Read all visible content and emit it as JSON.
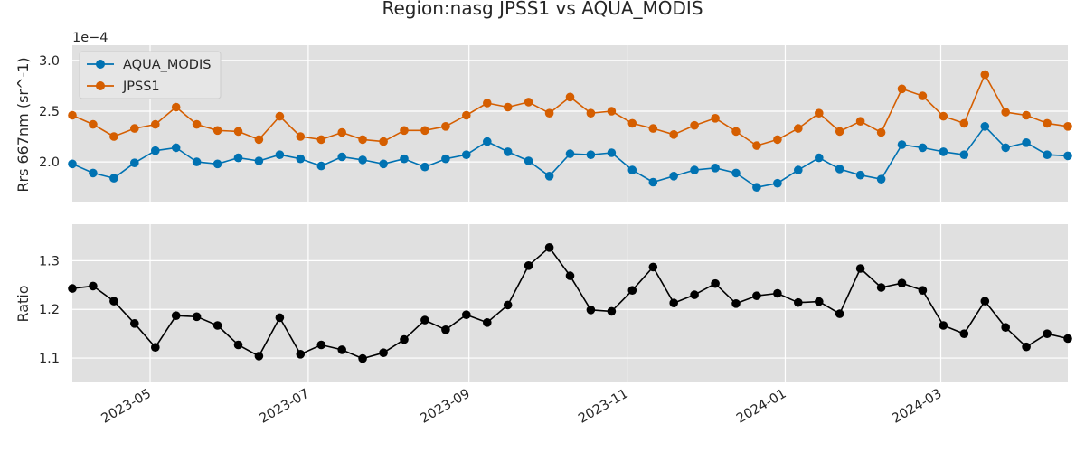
{
  "chart_data": {
    "type": "line",
    "title": "Region:nasg JPSS1 vs AQUA_MODIS",
    "x": [
      "2023-04-01",
      "2023-04-09",
      "2023-04-17",
      "2023-04-25",
      "2023-05-03",
      "2023-05-11",
      "2023-05-19",
      "2023-05-27",
      "2023-06-04",
      "2023-06-12",
      "2023-06-20",
      "2023-06-28",
      "2023-07-06",
      "2023-07-14",
      "2023-07-22",
      "2023-07-30",
      "2023-08-07",
      "2023-08-15",
      "2023-08-23",
      "2023-08-31",
      "2023-09-08",
      "2023-09-16",
      "2023-09-24",
      "2023-10-02",
      "2023-10-10",
      "2023-10-18",
      "2023-10-26",
      "2023-11-03",
      "2023-11-11",
      "2023-11-19",
      "2023-11-27",
      "2023-12-05",
      "2023-12-13",
      "2023-12-21",
      "2023-12-29",
      "2024-01-06",
      "2024-01-14",
      "2024-01-22",
      "2024-01-30",
      "2024-02-07",
      "2024-02-15",
      "2024-02-23",
      "2024-03-02",
      "2024-03-10",
      "2024-03-18",
      "2024-03-26",
      "2024-04-03",
      "2024-04-11",
      "2024-04-19"
    ],
    "xlim": [
      "2023-04-01",
      "2024-04-19"
    ],
    "xticks": [
      "2023-05",
      "2023-07",
      "2023-09",
      "2023-11",
      "2024-01",
      "2024-03"
    ],
    "panels": [
      {
        "ylabel": "Rrs 667nm (sr^-1)",
        "offset_label": "1e−4",
        "ylim": [
          1.6,
          3.15
        ],
        "yticks": [
          "2.0",
          "2.5",
          "3.0"
        ],
        "ytick_values": [
          2.0,
          2.5,
          3.0
        ],
        "grid": true,
        "legend": "top-left",
        "series": [
          {
            "name": "AQUA_MODIS",
            "color": "#0072b2",
            "values": [
              1.98,
              1.89,
              1.84,
              1.99,
              2.11,
              2.14,
              2.0,
              1.98,
              2.04,
              2.01,
              2.07,
              2.03,
              1.96,
              2.05,
              2.02,
              1.98,
              2.03,
              1.95,
              2.03,
              2.07,
              2.2,
              2.1,
              2.01,
              1.86,
              2.08,
              2.07,
              2.09,
              1.92,
              1.8,
              1.86,
              1.92,
              1.94,
              1.89,
              1.75,
              1.79,
              1.92,
              2.04,
              1.93,
              1.87,
              1.83,
              2.17,
              2.14,
              2.1,
              2.07,
              2.35,
              2.14,
              2.19,
              2.07,
              2.06
            ]
          },
          {
            "name": "JPSS1",
            "color": "#d55e00",
            "values": [
              2.46,
              2.37,
              2.25,
              2.33,
              2.37,
              2.54,
              2.37,
              2.31,
              2.3,
              2.22,
              2.45,
              2.25,
              2.22,
              2.29,
              2.22,
              2.2,
              2.31,
              2.31,
              2.35,
              2.46,
              2.58,
              2.54,
              2.59,
              2.48,
              2.64,
              2.48,
              2.5,
              2.38,
              2.33,
              2.27,
              2.36,
              2.43,
              2.3,
              2.16,
              2.22,
              2.33,
              2.48,
              2.3,
              2.4,
              2.29,
              2.72,
              2.65,
              2.45,
              2.38,
              2.86,
              2.49,
              2.46,
              2.38,
              2.35
            ]
          }
        ]
      },
      {
        "ylabel": "Ratio",
        "ylim": [
          1.05,
          1.375
        ],
        "yticks": [
          "1.1",
          "1.2",
          "1.3"
        ],
        "ytick_values": [
          1.1,
          1.2,
          1.3
        ],
        "grid": true,
        "series": [
          {
            "color": "#000000",
            "values": [
              1.243,
              1.248,
              1.217,
              1.171,
              1.122,
              1.187,
              1.185,
              1.167,
              1.127,
              1.104,
              1.183,
              1.108,
              1.127,
              1.117,
              1.099,
              1.111,
              1.138,
              1.178,
              1.158,
              1.189,
              1.173,
              1.209,
              1.29,
              1.327,
              1.269,
              1.199,
              1.196,
              1.239,
              1.287,
              1.213,
              1.23,
              1.253,
              1.212,
              1.228,
              1.233,
              1.214,
              1.216,
              1.191,
              1.284,
              1.245,
              1.254,
              1.239,
              1.167,
              1.15,
              1.217,
              1.163,
              1.123,
              1.15,
              1.14
            ]
          }
        ]
      }
    ]
  }
}
